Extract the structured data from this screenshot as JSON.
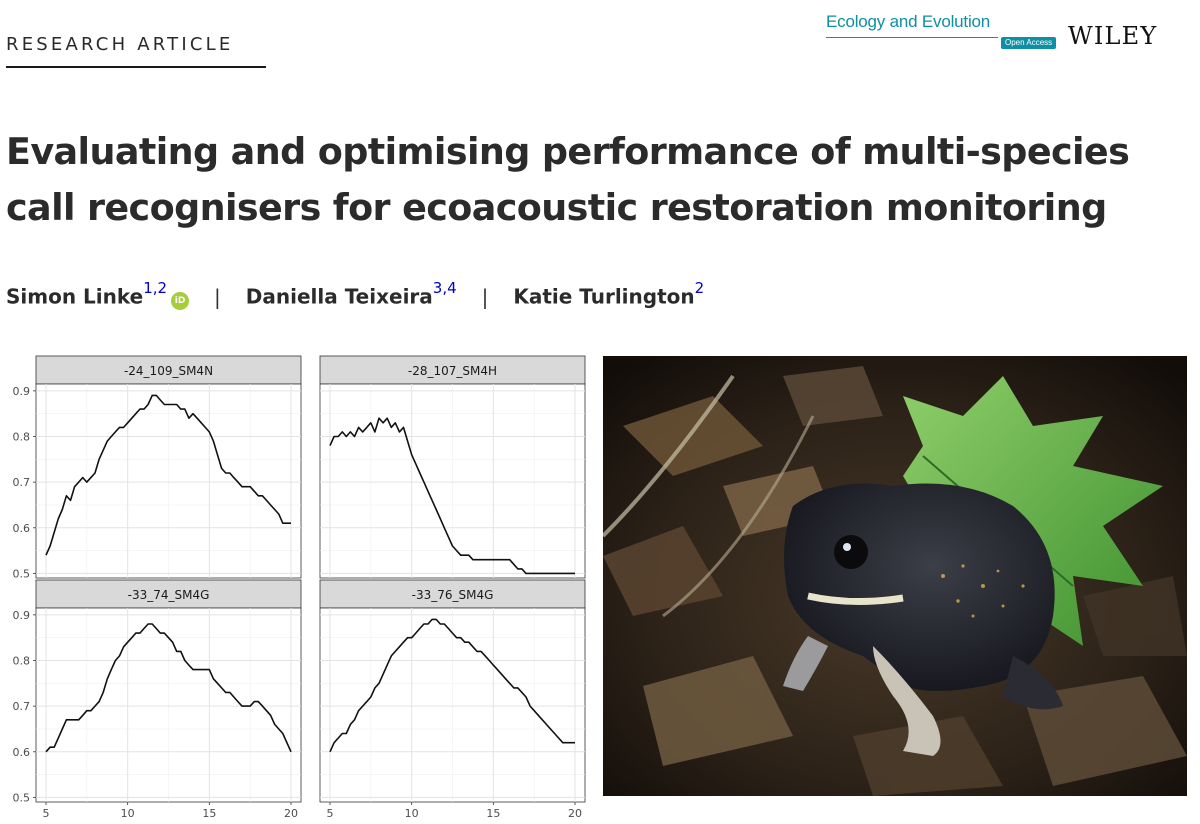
{
  "header": {
    "article_type": "RESEARCH ARTICLE",
    "journal_name": "Ecology and Evolution",
    "journal_badge": "Open Access",
    "publisher": "WILEY"
  },
  "article": {
    "title": "Evaluating and optimising performance of multi-species call recognisers for ecoacoustic restoration monitoring",
    "authors": [
      {
        "name": "Simon Linke",
        "affiliations": "1,2",
        "orcid": "iD"
      },
      {
        "name": "Daniella Teixeira",
        "affiliations": "3,4"
      },
      {
        "name": "Katie Turlington",
        "affiliations": "2"
      }
    ],
    "separator": "|"
  },
  "figure": {
    "photo_icon": "frog-photo"
  },
  "chart_data": [
    {
      "type": "line",
      "title": "-24_109_SM4N",
      "xlim": [
        5,
        20
      ],
      "ylim": [
        0.49,
        0.915
      ],
      "x_ticks": [
        5,
        10,
        15,
        20
      ],
      "y_ticks": [
        0.5,
        0.6,
        0.7,
        0.8,
        0.9
      ],
      "grid": true,
      "x": [
        5,
        5.25,
        5.5,
        5.75,
        6,
        6.25,
        6.5,
        6.75,
        7,
        7.25,
        7.5,
        7.75,
        8,
        8.25,
        8.5,
        8.75,
        9,
        9.25,
        9.5,
        9.75,
        10,
        10.25,
        10.5,
        10.75,
        11,
        11.25,
        11.5,
        11.75,
        12,
        12.25,
        12.5,
        12.75,
        13,
        13.25,
        13.5,
        13.75,
        14,
        14.25,
        14.5,
        14.75,
        15,
        15.25,
        15.5,
        15.75,
        16,
        16.25,
        16.5,
        16.75,
        17,
        17.25,
        17.5,
        17.75,
        18,
        18.25,
        18.5,
        18.75,
        19,
        19.25,
        19.5,
        19.75,
        20
      ],
      "y": [
        0.54,
        0.56,
        0.59,
        0.62,
        0.64,
        0.67,
        0.66,
        0.69,
        0.7,
        0.71,
        0.7,
        0.71,
        0.72,
        0.75,
        0.77,
        0.79,
        0.8,
        0.81,
        0.82,
        0.82,
        0.83,
        0.84,
        0.85,
        0.86,
        0.86,
        0.87,
        0.89,
        0.89,
        0.88,
        0.87,
        0.87,
        0.87,
        0.87,
        0.86,
        0.86,
        0.84,
        0.85,
        0.84,
        0.83,
        0.82,
        0.81,
        0.79,
        0.76,
        0.73,
        0.72,
        0.72,
        0.71,
        0.7,
        0.69,
        0.69,
        0.69,
        0.68,
        0.67,
        0.67,
        0.66,
        0.65,
        0.64,
        0.63,
        0.61,
        0.61,
        0.61
      ]
    },
    {
      "type": "line",
      "title": "-28_107_SM4H",
      "xlim": [
        5,
        20
      ],
      "ylim": [
        0.49,
        0.915
      ],
      "x_ticks": [
        5,
        10,
        15,
        20
      ],
      "y_ticks": [
        0.5,
        0.6,
        0.7,
        0.8,
        0.9
      ],
      "grid": true,
      "x": [
        5,
        5.25,
        5.5,
        5.75,
        6,
        6.25,
        6.5,
        6.75,
        7,
        7.25,
        7.5,
        7.75,
        8,
        8.25,
        8.5,
        8.75,
        9,
        9.25,
        9.5,
        9.75,
        10,
        10.25,
        10.5,
        10.75,
        11,
        11.25,
        11.5,
        11.75,
        12,
        12.25,
        12.5,
        12.75,
        13,
        13.25,
        13.5,
        13.75,
        14,
        14.25,
        14.5,
        14.75,
        15,
        15.25,
        15.5,
        15.75,
        16,
        16.25,
        16.5,
        16.75,
        17,
        17.25,
        17.5,
        17.75,
        18,
        18.25,
        18.5,
        18.75,
        19,
        19.25,
        19.5,
        19.75,
        20
      ],
      "y": [
        0.78,
        0.8,
        0.8,
        0.81,
        0.8,
        0.81,
        0.8,
        0.82,
        0.81,
        0.82,
        0.83,
        0.81,
        0.84,
        0.83,
        0.84,
        0.82,
        0.83,
        0.81,
        0.82,
        0.79,
        0.76,
        0.74,
        0.72,
        0.7,
        0.68,
        0.66,
        0.64,
        0.62,
        0.6,
        0.58,
        0.56,
        0.55,
        0.54,
        0.54,
        0.54,
        0.53,
        0.53,
        0.53,
        0.53,
        0.53,
        0.53,
        0.53,
        0.53,
        0.53,
        0.53,
        0.52,
        0.51,
        0.51,
        0.5,
        0.5,
        0.5,
        0.5,
        0.5,
        0.5,
        0.5,
        0.5,
        0.5,
        0.5,
        0.5,
        0.5,
        0.5
      ]
    },
    {
      "type": "line",
      "title": "-33_74_SM4G",
      "xlim": [
        5,
        20
      ],
      "ylim": [
        0.49,
        0.915
      ],
      "x_ticks": [
        5,
        10,
        15,
        20
      ],
      "y_ticks": [
        0.5,
        0.6,
        0.7,
        0.8,
        0.9
      ],
      "grid": true,
      "x": [
        5,
        5.25,
        5.5,
        5.75,
        6,
        6.25,
        6.5,
        6.75,
        7,
        7.25,
        7.5,
        7.75,
        8,
        8.25,
        8.5,
        8.75,
        9,
        9.25,
        9.5,
        9.75,
        10,
        10.25,
        10.5,
        10.75,
        11,
        11.25,
        11.5,
        11.75,
        12,
        12.25,
        12.5,
        12.75,
        13,
        13.25,
        13.5,
        13.75,
        14,
        14.25,
        14.5,
        14.75,
        15,
        15.25,
        15.5,
        15.75,
        16,
        16.25,
        16.5,
        16.75,
        17,
        17.25,
        17.5,
        17.75,
        18,
        18.25,
        18.5,
        18.75,
        19,
        19.25,
        19.5,
        19.75,
        20
      ],
      "y": [
        0.6,
        0.61,
        0.61,
        0.63,
        0.65,
        0.67,
        0.67,
        0.67,
        0.67,
        0.68,
        0.69,
        0.69,
        0.7,
        0.71,
        0.73,
        0.76,
        0.78,
        0.8,
        0.81,
        0.83,
        0.84,
        0.85,
        0.86,
        0.86,
        0.87,
        0.88,
        0.88,
        0.87,
        0.86,
        0.86,
        0.85,
        0.84,
        0.82,
        0.82,
        0.8,
        0.79,
        0.78,
        0.78,
        0.78,
        0.78,
        0.78,
        0.76,
        0.75,
        0.74,
        0.73,
        0.73,
        0.72,
        0.71,
        0.7,
        0.7,
        0.7,
        0.71,
        0.71,
        0.7,
        0.69,
        0.68,
        0.66,
        0.65,
        0.64,
        0.62,
        0.6
      ]
    },
    {
      "type": "line",
      "title": "-33_76_SM4G",
      "xlim": [
        5,
        20
      ],
      "ylim": [
        0.49,
        0.915
      ],
      "x_ticks": [
        5,
        10,
        15,
        20
      ],
      "y_ticks": [
        0.5,
        0.6,
        0.7,
        0.8,
        0.9
      ],
      "grid": true,
      "x": [
        5,
        5.25,
        5.5,
        5.75,
        6,
        6.25,
        6.5,
        6.75,
        7,
        7.25,
        7.5,
        7.75,
        8,
        8.25,
        8.5,
        8.75,
        9,
        9.25,
        9.5,
        9.75,
        10,
        10.25,
        10.5,
        10.75,
        11,
        11.25,
        11.5,
        11.75,
        12,
        12.25,
        12.5,
        12.75,
        13,
        13.25,
        13.5,
        13.75,
        14,
        14.25,
        14.5,
        14.75,
        15,
        15.25,
        15.5,
        15.75,
        16,
        16.25,
        16.5,
        16.75,
        17,
        17.25,
        17.5,
        17.75,
        18,
        18.25,
        18.5,
        18.75,
        19,
        19.25,
        19.5,
        19.75,
        20
      ],
      "y": [
        0.6,
        0.62,
        0.63,
        0.64,
        0.64,
        0.66,
        0.67,
        0.69,
        0.7,
        0.71,
        0.72,
        0.74,
        0.75,
        0.77,
        0.79,
        0.81,
        0.82,
        0.83,
        0.84,
        0.85,
        0.85,
        0.86,
        0.87,
        0.88,
        0.88,
        0.89,
        0.89,
        0.88,
        0.88,
        0.87,
        0.86,
        0.85,
        0.85,
        0.84,
        0.84,
        0.83,
        0.82,
        0.82,
        0.81,
        0.8,
        0.79,
        0.78,
        0.77,
        0.76,
        0.75,
        0.74,
        0.74,
        0.73,
        0.72,
        0.7,
        0.69,
        0.68,
        0.67,
        0.66,
        0.65,
        0.64,
        0.63,
        0.62,
        0.62,
        0.62,
        0.62
      ]
    }
  ]
}
